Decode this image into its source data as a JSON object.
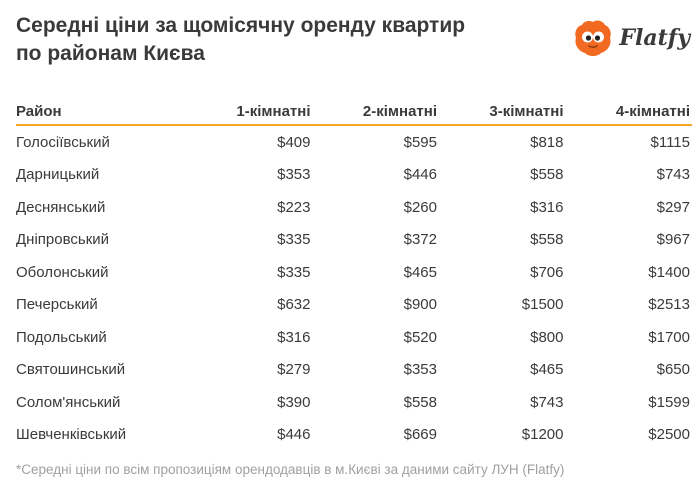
{
  "title_line1": "Середні ціни за щомісячну оренду квартир",
  "title_line2": "по районам Києва",
  "logo_text": "Flatfy",
  "footnote": "*Середні ціни по всім пропозиціям орендодавців в м.Києві за даними сайту ЛУН (Flatfy)",
  "colors": {
    "accent": "#f5a623",
    "logo": "#f26a21"
  },
  "chart_data": {
    "type": "table",
    "columns": [
      "Район",
      "1-кімнатні",
      "2-кімнатні",
      "3-кімнатні",
      "4-кімнатні"
    ],
    "rows": [
      [
        "Голосіївський",
        "$409",
        "$595",
        "$818",
        "$1115"
      ],
      [
        "Дарницький",
        "$353",
        "$446",
        "$558",
        "$743"
      ],
      [
        "Деснянський",
        "$223",
        "$260",
        "$316",
        "$297"
      ],
      [
        "Дніпровський",
        "$335",
        "$372",
        "$558",
        "$967"
      ],
      [
        "Оболонський",
        "$335",
        "$465",
        "$706",
        "$1400"
      ],
      [
        "Печерський",
        "$632",
        "$900",
        "$1500",
        "$2513"
      ],
      [
        "Подольський",
        "$316",
        "$520",
        "$800",
        "$1700"
      ],
      [
        "Святошинський",
        "$279",
        "$353",
        "$465",
        "$650"
      ],
      [
        "Солом'янський",
        "$390",
        "$558",
        "$743",
        "$1599"
      ],
      [
        "Шевченківський",
        "$446",
        "$669",
        "$1200",
        "$2500"
      ]
    ]
  }
}
